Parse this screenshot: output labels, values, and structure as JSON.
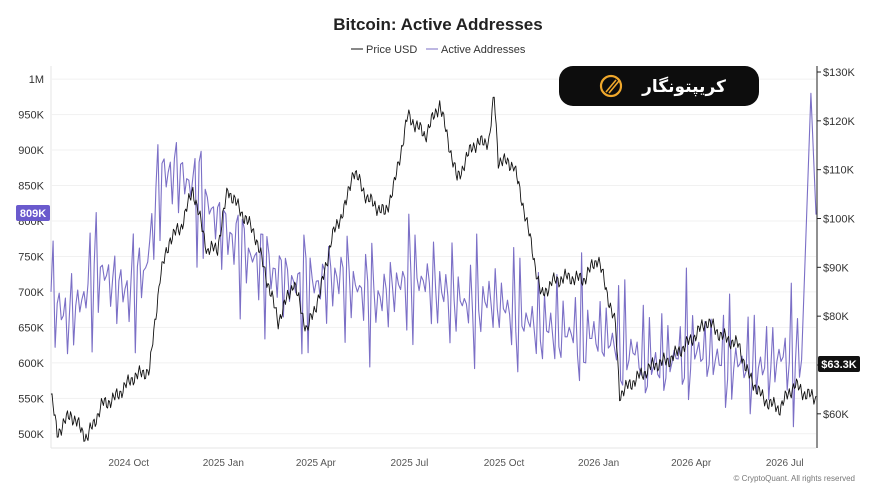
{
  "chart_data": {
    "type": "line",
    "title": "Bitcoin: Active Addresses",
    "legend": {
      "placement": "top-center",
      "entries": [
        "Price USD",
        "Active Addresses"
      ]
    },
    "x_ticks": [
      "2024 Oct",
      "2025 Jan",
      "2025 Apr",
      "2025 Jul",
      "2025 Oct",
      "2026 Jan",
      "2026 Apr",
      "2026 Jul"
    ],
    "x_range": [
      "2024-08-01",
      "2026-08-15"
    ],
    "y_left": {
      "label": "",
      "range": [
        480000,
        1010000
      ],
      "ticks": [
        "1M",
        "950K",
        "900K",
        "850K",
        "800K",
        "750K",
        "700K",
        "650K",
        "600K",
        "550K",
        "500K"
      ],
      "tick_values": [
        1000000,
        950000,
        900000,
        850000,
        800000,
        750000,
        700000,
        650000,
        600000,
        550000,
        500000
      ]
    },
    "y_right": {
      "label": "",
      "range": [
        53000,
        130000
      ],
      "ticks": [
        "$130K",
        "$120K",
        "$110K",
        "$100K",
        "$90K",
        "$80K",
        "$70K",
        "$60K"
      ],
      "tick_values": [
        130000,
        120000,
        110000,
        100000,
        90000,
        80000,
        70000,
        60000
      ]
    },
    "last_value_labels": {
      "active_addresses": "809K",
      "price": "$63.3K"
    },
    "series": [
      {
        "name": "Active Addresses",
        "axis": "left",
        "color": "#7b6fc6",
        "points": [
          [
            "2024-08-01",
            700000
          ],
          [
            "2024-08-15",
            660000
          ],
          [
            "2024-09-01",
            690000
          ],
          [
            "2024-09-15",
            735000
          ],
          [
            "2024-10-01",
            710000
          ],
          [
            "2024-10-15",
            700000
          ],
          [
            "2024-11-01",
            730000
          ],
          [
            "2024-11-15",
            860000
          ],
          [
            "2024-12-01",
            870000
          ],
          [
            "2024-12-15",
            850000
          ],
          [
            "2025-01-01",
            820000
          ],
          [
            "2025-01-15",
            790000
          ],
          [
            "2025-02-01",
            760000
          ],
          [
            "2025-02-15",
            745000
          ],
          [
            "2025-03-01",
            730000
          ],
          [
            "2025-03-15",
            720000
          ],
          [
            "2025-04-01",
            705000
          ],
          [
            "2025-04-15",
            710000
          ],
          [
            "2025-05-01",
            720000
          ],
          [
            "2025-05-15",
            715000
          ],
          [
            "2025-06-01",
            700000
          ],
          [
            "2025-06-15",
            690000
          ],
          [
            "2025-07-01",
            705000
          ],
          [
            "2025-07-15",
            720000
          ],
          [
            "2025-08-01",
            715000
          ],
          [
            "2025-08-15",
            700000
          ],
          [
            "2025-09-01",
            690000
          ],
          [
            "2025-09-15",
            680000
          ],
          [
            "2025-10-01",
            690000
          ],
          [
            "2025-10-15",
            680000
          ],
          [
            "2025-11-01",
            665000
          ],
          [
            "2025-11-15",
            655000
          ],
          [
            "2025-12-01",
            650000
          ],
          [
            "2025-12-15",
            645000
          ],
          [
            "2026-01-01",
            640000
          ],
          [
            "2026-01-15",
            640000
          ],
          [
            "2026-02-01",
            630000
          ],
          [
            "2026-02-15",
            620000
          ],
          [
            "2026-03-01",
            605000
          ],
          [
            "2026-03-15",
            600000
          ],
          [
            "2026-04-01",
            610000
          ],
          [
            "2026-04-15",
            620000
          ],
          [
            "2026-05-01",
            615000
          ],
          [
            "2026-05-15",
            605000
          ],
          [
            "2026-06-01",
            600000
          ],
          [
            "2026-06-15",
            595000
          ],
          [
            "2026-07-01",
            600000
          ],
          [
            "2026-07-15",
            610000
          ],
          [
            "2026-08-01",
            605000
          ],
          [
            "2026-08-10",
            980000
          ],
          [
            "2026-08-15",
            809000
          ]
        ]
      },
      {
        "name": "Price USD",
        "axis": "right",
        "color": "#111111",
        "points": [
          [
            "2024-08-01",
            64000
          ],
          [
            "2024-08-07",
            56000
          ],
          [
            "2024-08-20",
            60000
          ],
          [
            "2024-09-05",
            55000
          ],
          [
            "2024-09-20",
            62000
          ],
          [
            "2024-10-01",
            63000
          ],
          [
            "2024-10-20",
            67500
          ],
          [
            "2024-11-05",
            69000
          ],
          [
            "2024-11-15",
            88000
          ],
          [
            "2024-11-25",
            96000
          ],
          [
            "2024-12-05",
            98000
          ],
          [
            "2024-12-17",
            106000
          ],
          [
            "2024-12-31",
            93500
          ],
          [
            "2025-01-10",
            94000
          ],
          [
            "2025-01-20",
            106000
          ],
          [
            "2025-01-31",
            102000
          ],
          [
            "2025-02-15",
            97000
          ],
          [
            "2025-03-01",
            86000
          ],
          [
            "2025-03-10",
            79000
          ],
          [
            "2025-03-25",
            87000
          ],
          [
            "2025-04-07",
            77000
          ],
          [
            "2025-04-20",
            85000
          ],
          [
            "2025-05-01",
            96000
          ],
          [
            "2025-05-15",
            103000
          ],
          [
            "2025-05-22",
            110000
          ],
          [
            "2025-06-05",
            104000
          ],
          [
            "2025-06-22",
            101000
          ],
          [
            "2025-07-01",
            107000
          ],
          [
            "2025-07-14",
            121000
          ],
          [
            "2025-07-31",
            117000
          ],
          [
            "2025-08-14",
            123500
          ],
          [
            "2025-08-31",
            108000
          ],
          [
            "2025-09-15",
            115000
          ],
          [
            "2025-10-01",
            116000
          ],
          [
            "2025-10-06",
            125000
          ],
          [
            "2025-10-10",
            112000
          ],
          [
            "2025-10-25",
            111000
          ],
          [
            "2025-11-05",
            101000
          ],
          [
            "2025-11-21",
            84000
          ],
          [
            "2025-12-01",
            87000
          ],
          [
            "2025-12-15",
            88000
          ],
          [
            "2026-01-01",
            87500
          ],
          [
            "2026-01-15",
            92000
          ],
          [
            "2026-02-01",
            78000
          ],
          [
            "2026-02-05",
            64000
          ],
          [
            "2026-02-20",
            67000
          ],
          [
            "2026-03-10",
            70000
          ],
          [
            "2026-03-25",
            71000
          ],
          [
            "2026-04-15",
            75000
          ],
          [
            "2026-05-01",
            79000
          ],
          [
            "2026-05-15",
            76000
          ],
          [
            "2026-06-01",
            74000
          ],
          [
            "2026-06-10",
            68000
          ],
          [
            "2026-06-25",
            63000
          ],
          [
            "2026-07-10",
            61000
          ],
          [
            "2026-07-25",
            66000
          ],
          [
            "2026-08-05",
            64000
          ],
          [
            "2026-08-15",
            63300
          ]
        ]
      }
    ]
  },
  "watermark_logo": {
    "text": "کریپتونگار",
    "bg_color": "#0d0d0d",
    "accent": "#f0a82c"
  },
  "footer_text": "© CryptoQuant. All rights reserved"
}
